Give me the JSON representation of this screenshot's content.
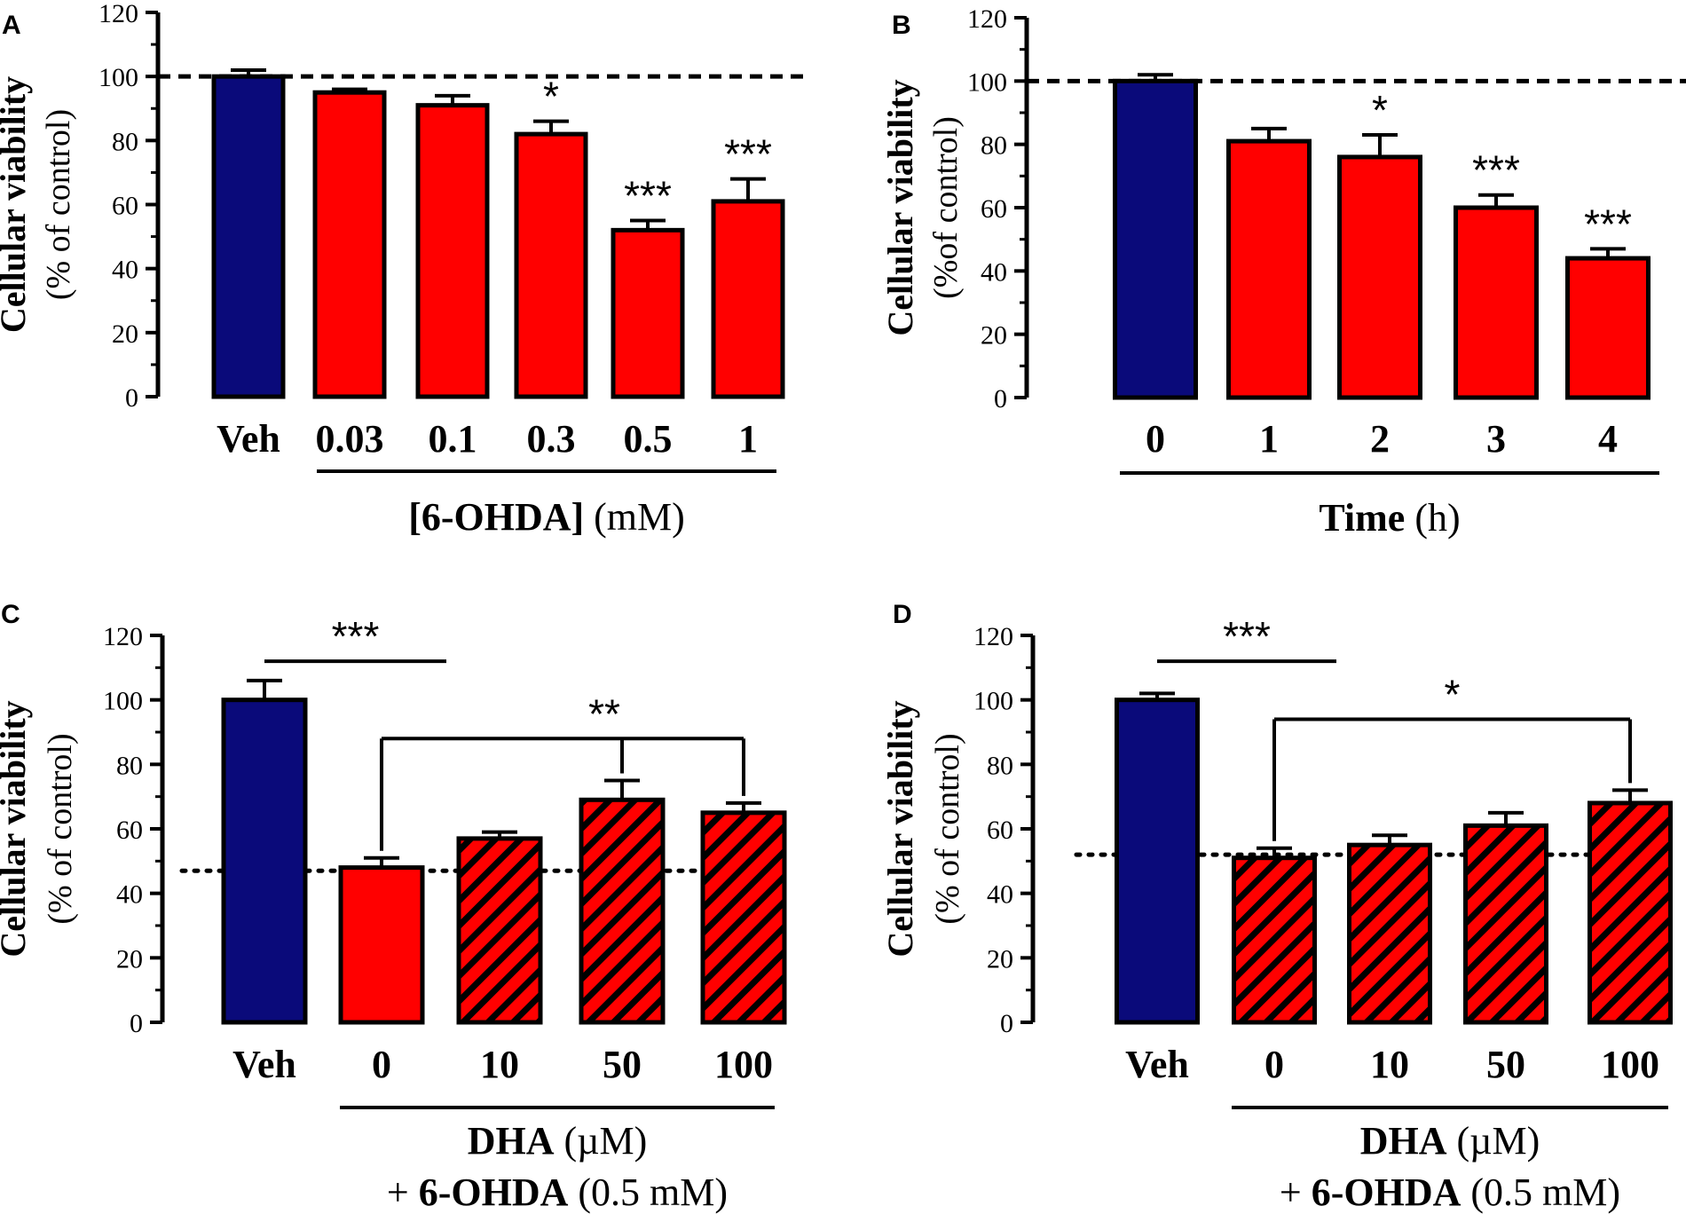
{
  "colors": {
    "vehicle": "#0a0a7a",
    "treatment": "#ff0000",
    "hatch": "#000000",
    "outline": "#000000"
  },
  "chart_data": [
    {
      "panel": "A",
      "type": "bar",
      "ylabel_line1": "Cellular viability",
      "ylabel_line2": "(% of control)",
      "ylim": [
        0,
        120
      ],
      "yticks": [
        "0",
        "20",
        "40",
        "60",
        "80",
        "100",
        "120"
      ],
      "reference_line": {
        "value": 100,
        "style": "dashed"
      },
      "categories": [
        "Veh",
        "0.03",
        "0.1",
        "0.3",
        "0.5",
        "1"
      ],
      "values": [
        100,
        95,
        91,
        82,
        52,
        61
      ],
      "errors": [
        2,
        1,
        3,
        4,
        3,
        7
      ],
      "fills": [
        "vehicle",
        "treatment",
        "treatment",
        "treatment",
        "treatment",
        "treatment"
      ],
      "significance": [
        "",
        "",
        "",
        "*",
        "***",
        "***"
      ],
      "xlabel_bold": "[6-OHDA]",
      "xlabel_rest": " (mM)",
      "xlabel_line2_bold": "",
      "xlabel_line2_rest": "",
      "brackets": []
    },
    {
      "panel": "B",
      "type": "bar",
      "ylabel_line1": "Cellular viability",
      "ylabel_line2": "(%of control)",
      "ylim": [
        0,
        120
      ],
      "yticks": [
        "0",
        "20",
        "40",
        "60",
        "80",
        "100",
        "120"
      ],
      "reference_line": {
        "value": 100,
        "style": "dashed"
      },
      "categories": [
        "0",
        "1",
        "2",
        "3",
        "4"
      ],
      "values": [
        100,
        81,
        76,
        60,
        44
      ],
      "errors": [
        2,
        4,
        7,
        4,
        3
      ],
      "fills": [
        "vehicle",
        "treatment",
        "treatment",
        "treatment",
        "treatment"
      ],
      "significance": [
        "",
        "",
        "*",
        "***",
        "***"
      ],
      "xlabel_bold": "Time",
      "xlabel_rest": " (h)",
      "xlabel_line2_bold": "",
      "xlabel_line2_rest": "",
      "brackets": []
    },
    {
      "panel": "C",
      "type": "bar",
      "ylabel_line1": "Cellular viability",
      "ylabel_line2": "(% of control)",
      "ylim": [
        0,
        120
      ],
      "yticks": [
        "0",
        "20",
        "40",
        "60",
        "80",
        "100",
        "120"
      ],
      "reference_line": {
        "value": 47,
        "style": "dotted"
      },
      "categories": [
        "Veh",
        "0",
        "10",
        "50",
        "100"
      ],
      "values": [
        100,
        48,
        57,
        69,
        65
      ],
      "errors": [
        6,
        3,
        2,
        6,
        3
      ],
      "fills": [
        "vehicle",
        "treatment",
        "hatched",
        "hatched",
        "hatched"
      ],
      "significance": [
        "",
        "",
        "",
        "",
        ""
      ],
      "xlabel_bold": "DHA",
      "xlabel_rest": " (µM)",
      "xlabel_line2_bold": "6-OHDA",
      "xlabel_line2_rest": " (0.5 mM)",
      "brackets": [
        {
          "label": "***",
          "from": 0,
          "to": 2,
          "value": 112,
          "type": "line"
        },
        {
          "label": "**",
          "from": 1,
          "to": [
            3,
            4
          ],
          "value": 88,
          "type": "branch"
        }
      ]
    },
    {
      "panel": "D",
      "type": "bar",
      "ylabel_line1": "Cellular viability",
      "ylabel_line2": "(% of control)",
      "ylim": [
        0,
        120
      ],
      "yticks": [
        "0",
        "20",
        "40",
        "60",
        "80",
        "100",
        "120"
      ],
      "reference_line": {
        "value": 52,
        "style": "dotted"
      },
      "categories": [
        "Veh",
        "0",
        "10",
        "50",
        "100"
      ],
      "values": [
        100,
        51,
        55,
        61,
        68
      ],
      "errors": [
        2,
        3,
        3,
        4,
        4
      ],
      "fills": [
        "vehicle",
        "hatched",
        "hatched",
        "hatched",
        "hatched"
      ],
      "significance": [
        "",
        "",
        "",
        "",
        ""
      ],
      "xlabel_bold": "DHA",
      "xlabel_rest": " (µM)",
      "xlabel_line2_bold": "6-OHDA",
      "xlabel_line2_rest": " (0.5 mM)",
      "brackets": [
        {
          "label": "***",
          "from": 0,
          "to": 2,
          "value": 112,
          "type": "line"
        },
        {
          "label": "*",
          "from": 1,
          "to": [
            4
          ],
          "value": 94,
          "type": "branch"
        }
      ]
    }
  ]
}
